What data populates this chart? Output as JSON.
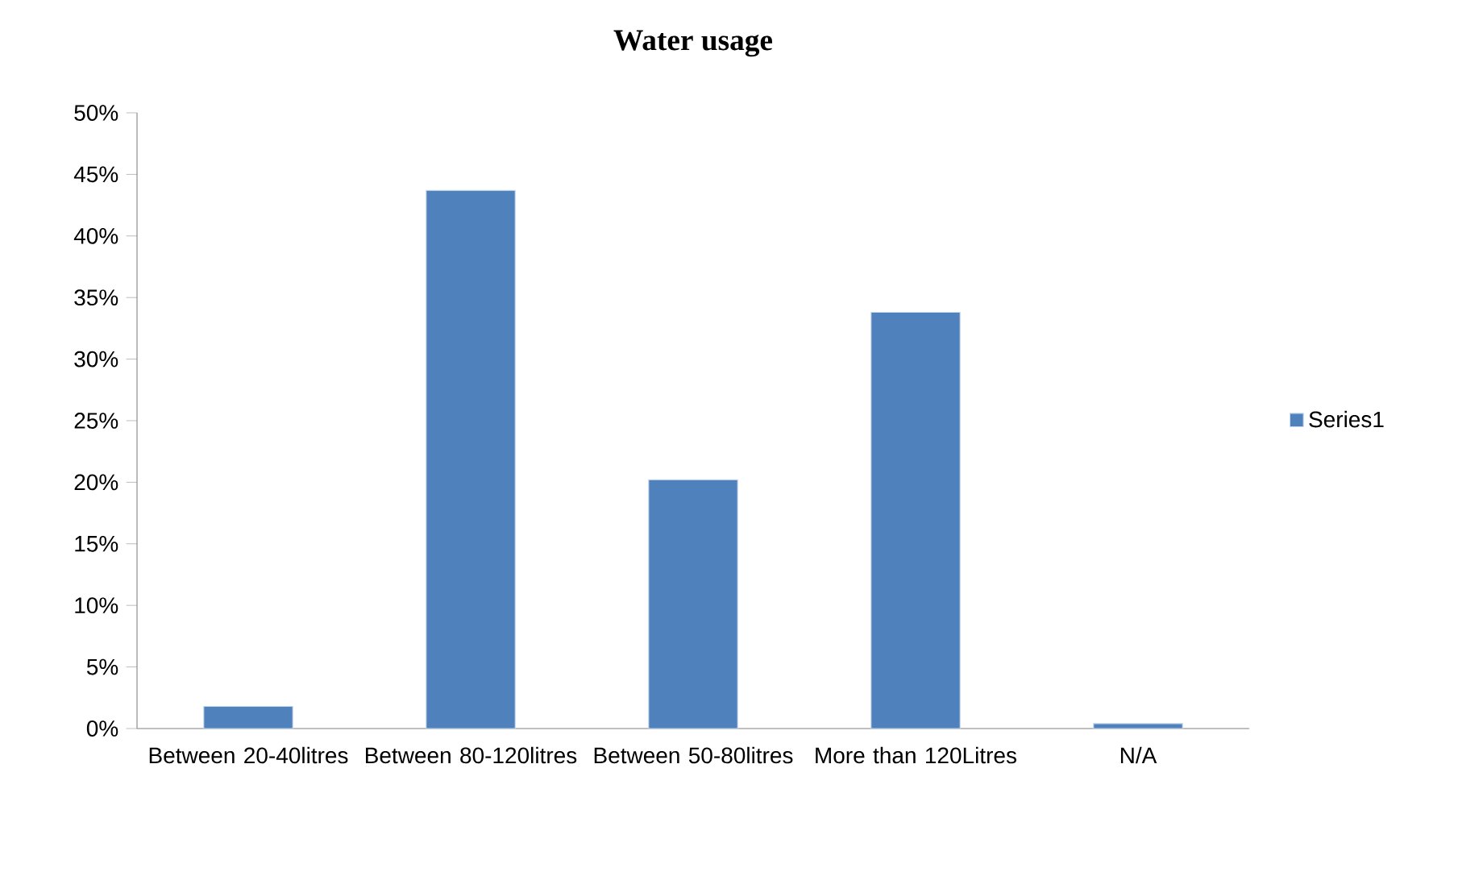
{
  "chart_data": {
    "type": "bar",
    "title": "Water usage",
    "categories": [
      "Between 20-40litres",
      "Between 80-120litres",
      "Between 50-80litres",
      "More than 120Litres",
      "N/A"
    ],
    "series": [
      {
        "name": "Series1",
        "color": "#4f81bd",
        "values": [
          1.8,
          43.7,
          20.2,
          33.8,
          0.4
        ]
      }
    ],
    "ylim": [
      0,
      50
    ],
    "yticks": [
      {
        "value": 0,
        "label": "0%"
      },
      {
        "value": 5,
        "label": "5%"
      },
      {
        "value": 10,
        "label": "10%"
      },
      {
        "value": 15,
        "label": "15%"
      },
      {
        "value": 20,
        "label": "20%"
      },
      {
        "value": 25,
        "label": "25%"
      },
      {
        "value": 30,
        "label": "30%"
      },
      {
        "value": 35,
        "label": "35%"
      },
      {
        "value": 40,
        "label": "40%"
      },
      {
        "value": 45,
        "label": "45%"
      },
      {
        "value": 50,
        "label": "50%"
      }
    ],
    "legend": "right",
    "grid": false
  }
}
